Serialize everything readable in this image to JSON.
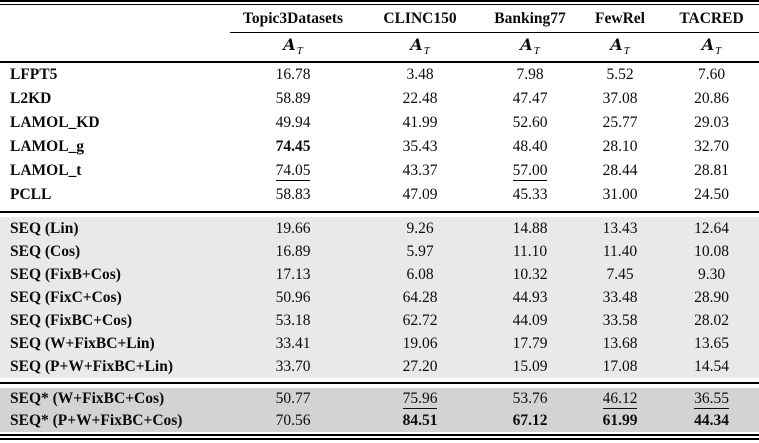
{
  "table": {
    "columns": [
      "Topic3Datasets",
      "CLINC150",
      "Banking77",
      "FewRel",
      "TACRED"
    ],
    "metric": {
      "symbol": "A",
      "subscript": "T"
    },
    "colors": {
      "rule": "#000000",
      "section_bg_white": "#ffffff",
      "section_bg_light_gray": "#e9e9e9",
      "section_bg_dark_gray": "#d3d3d3"
    },
    "sections": [
      {
        "name": "baselines",
        "bg": "#ffffff",
        "rows": [
          {
            "label": "LFPT5",
            "values": [
              "16.78",
              "3.48",
              "7.98",
              "5.52",
              "7.60"
            ],
            "bold": [],
            "underline": []
          },
          {
            "label": "L2KD",
            "values": [
              "58.89",
              "22.48",
              "47.47",
              "37.08",
              "20.86"
            ],
            "bold": [],
            "underline": []
          },
          {
            "label": "LAMOL_KD",
            "values": [
              "49.94",
              "41.99",
              "52.60",
              "25.77",
              "29.03"
            ],
            "bold": [],
            "underline": []
          },
          {
            "label": "LAMOL_g",
            "values": [
              "74.45",
              "35.43",
              "48.40",
              "28.10",
              "32.70"
            ],
            "bold": [
              0
            ],
            "underline": []
          },
          {
            "label": "LAMOL_t",
            "values": [
              "74.05",
              "43.37",
              "57.00",
              "28.44",
              "28.81"
            ],
            "bold": [],
            "underline": [
              0,
              2
            ]
          },
          {
            "label": "PCLL",
            "values": [
              "58.83",
              "47.09",
              "45.33",
              "31.00",
              "24.50"
            ],
            "bold": [],
            "underline": []
          }
        ]
      },
      {
        "name": "seq-variants",
        "bg": "#e9e9e9",
        "rows": [
          {
            "label": "SEQ (Lin)",
            "values": [
              "19.66",
              "9.26",
              "14.88",
              "13.43",
              "12.64"
            ],
            "bold": [],
            "underline": []
          },
          {
            "label": "SEQ (Cos)",
            "values": [
              "16.89",
              "5.97",
              "11.10",
              "11.40",
              "10.08"
            ],
            "bold": [],
            "underline": []
          },
          {
            "label": "SEQ (FixB+Cos)",
            "values": [
              "17.13",
              "6.08",
              "10.32",
              "7.45",
              "9.30"
            ],
            "bold": [],
            "underline": []
          },
          {
            "label": "SEQ (FixC+Cos)",
            "values": [
              "50.96",
              "64.28",
              "44.93",
              "33.48",
              "28.90"
            ],
            "bold": [],
            "underline": []
          },
          {
            "label": "SEQ (FixBC+Cos)",
            "values": [
              "53.18",
              "62.72",
              "44.09",
              "33.58",
              "28.02"
            ],
            "bold": [],
            "underline": []
          },
          {
            "label": "SEQ (W+FixBC+Lin)",
            "values": [
              "33.41",
              "19.06",
              "17.79",
              "13.68",
              "13.65"
            ],
            "bold": [],
            "underline": []
          },
          {
            "label": "SEQ (P+W+FixBC+Lin)",
            "values": [
              "33.70",
              "27.20",
              "15.09",
              "17.08",
              "14.54"
            ],
            "bold": [],
            "underline": []
          }
        ]
      },
      {
        "name": "seq-star",
        "bg": "#d3d3d3",
        "rows": [
          {
            "label": "SEQ* (W+FixBC+Cos)",
            "values": [
              "50.77",
              "75.96",
              "53.76",
              "46.12",
              "36.55"
            ],
            "bold": [],
            "underline": [
              1,
              3,
              4
            ]
          },
          {
            "label": "SEQ* (P+W+FixBC+Cos)",
            "values": [
              "70.56",
              "84.51",
              "67.12",
              "61.99",
              "44.34"
            ],
            "bold": [
              1,
              2,
              3,
              4
            ],
            "underline": []
          }
        ]
      }
    ]
  }
}
